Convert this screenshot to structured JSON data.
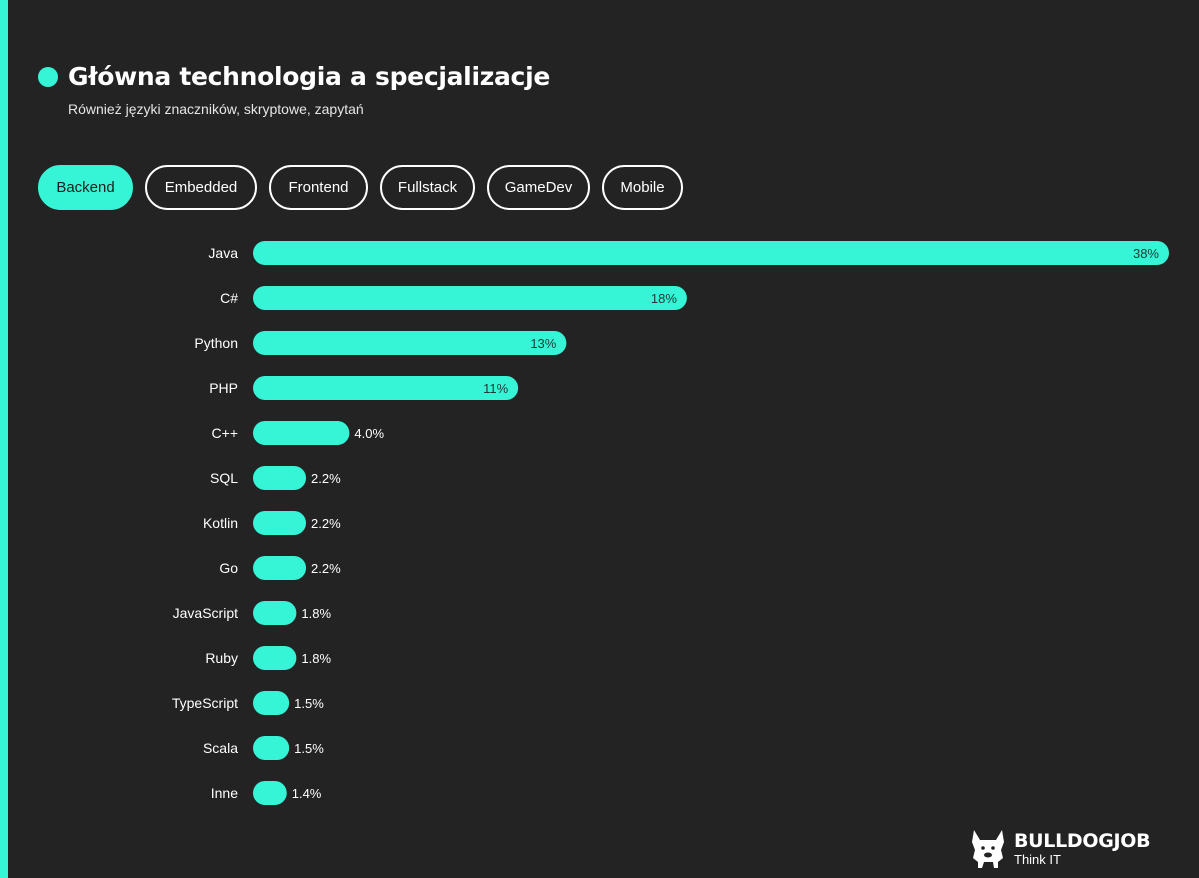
{
  "header": {
    "title": "Główna technologia a specjalizacje",
    "subtitle": "Również języki znaczników, skryptowe, zapytań"
  },
  "tabs": [
    {
      "label": "Backend",
      "active": true
    },
    {
      "label": "Embedded",
      "active": false
    },
    {
      "label": "Frontend",
      "active": false
    },
    {
      "label": "Fullstack",
      "active": false
    },
    {
      "label": "GameDev",
      "active": false
    },
    {
      "label": "Mobile",
      "active": false
    }
  ],
  "colors": {
    "accent": "#35f5d6",
    "background": "#232323",
    "text": "#ffffff",
    "label_on_bar": "#1e3a35"
  },
  "chart_data": {
    "type": "bar",
    "orientation": "horizontal",
    "categories": [
      "Java",
      "C#",
      "Python",
      "PHP",
      "C++",
      "SQL",
      "Kotlin",
      "Go",
      "JavaScript",
      "Ruby",
      "TypeScript",
      "Scala",
      "Inne"
    ],
    "values": [
      38,
      18,
      13,
      11,
      4.0,
      2.2,
      2.2,
      2.2,
      1.8,
      1.8,
      1.5,
      1.5,
      1.4
    ],
    "value_labels": [
      "38%",
      "18%",
      "13%",
      "11%",
      "4.0%",
      "2.2%",
      "2.2%",
      "2.2%",
      "1.8%",
      "1.8%",
      "1.5%",
      "1.5%",
      "1.4%"
    ],
    "unit": "%",
    "xlim": [
      0,
      38
    ],
    "grid": false,
    "legend": "none"
  },
  "brand": {
    "icon": "bulldog-icon",
    "name": "BULLDOGJOB",
    "tagline": "Think IT"
  }
}
